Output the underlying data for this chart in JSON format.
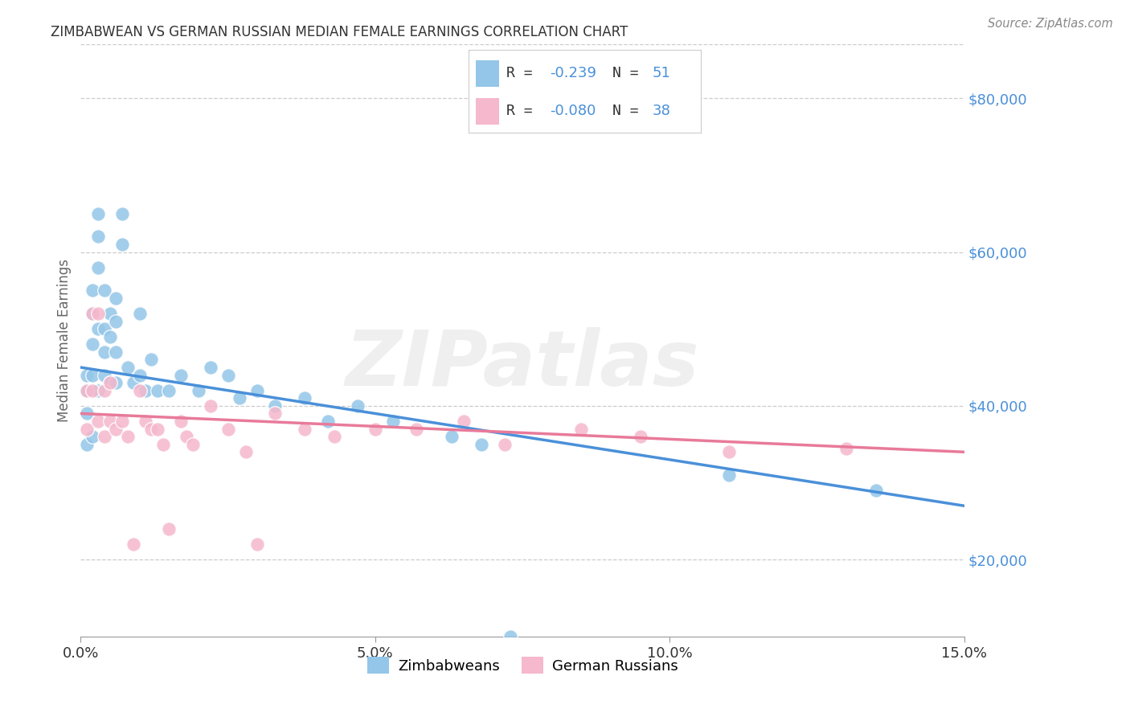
{
  "title": "ZIMBABWEAN VS GERMAN RUSSIAN MEDIAN FEMALE EARNINGS CORRELATION CHART",
  "source": "Source: ZipAtlas.com",
  "ylabel": "Median Female Earnings",
  "xlim": [
    0.0,
    0.15
  ],
  "ylim": [
    10000,
    87000
  ],
  "xticks": [
    0.0,
    0.05,
    0.1,
    0.15
  ],
  "xtick_labels": [
    "0.0%",
    "5.0%",
    "10.0%",
    "15.0%"
  ],
  "ytick_vals": [
    20000,
    40000,
    60000,
    80000
  ],
  "ytick_labels": [
    "$20,000",
    "$40,000",
    "$60,000",
    "$80,000"
  ],
  "zim_color": "#93c6e8",
  "gr_color": "#f5b8cc",
  "zim_line_color": "#4a90d9",
  "gr_line_color": "#e87a9a",
  "bg_color": "#ffffff",
  "grid_color": "#cccccc",
  "title_color": "#333333",
  "ylabel_color": "#666666",
  "right_tick_color": "#4a90d9",
  "legend_text_color": "#4a90d9",
  "R_zim": "-0.239",
  "N_zim": "51",
  "R_gr": "-0.080",
  "N_gr": "38",
  "watermark_text": "ZIPatlas",
  "zim_trendline_x": [
    0.0,
    0.15
  ],
  "zim_trendline_y": [
    45000,
    27000
  ],
  "gr_trendline_x": [
    0.0,
    0.15
  ],
  "gr_trendline_y": [
    39000,
    34000
  ],
  "zim_x": [
    0.001,
    0.001,
    0.001,
    0.001,
    0.002,
    0.002,
    0.002,
    0.002,
    0.002,
    0.003,
    0.003,
    0.003,
    0.003,
    0.003,
    0.004,
    0.004,
    0.004,
    0.004,
    0.005,
    0.005,
    0.005,
    0.006,
    0.006,
    0.006,
    0.006,
    0.007,
    0.007,
    0.008,
    0.009,
    0.01,
    0.01,
    0.011,
    0.012,
    0.013,
    0.015,
    0.017,
    0.02,
    0.022,
    0.025,
    0.027,
    0.03,
    0.033,
    0.038,
    0.042,
    0.047,
    0.053,
    0.063,
    0.068,
    0.073,
    0.11,
    0.135
  ],
  "zim_y": [
    44000,
    42000,
    39000,
    35000,
    55000,
    52000,
    48000,
    44000,
    36000,
    65000,
    62000,
    58000,
    50000,
    42000,
    55000,
    50000,
    47000,
    44000,
    52000,
    49000,
    43000,
    54000,
    51000,
    47000,
    43000,
    65000,
    61000,
    45000,
    43000,
    52000,
    44000,
    42000,
    46000,
    42000,
    42000,
    44000,
    42000,
    45000,
    44000,
    41000,
    42000,
    40000,
    41000,
    38000,
    40000,
    38000,
    36000,
    35000,
    10000,
    31000,
    29000
  ],
  "gr_x": [
    0.001,
    0.001,
    0.002,
    0.002,
    0.003,
    0.003,
    0.004,
    0.004,
    0.005,
    0.005,
    0.006,
    0.007,
    0.008,
    0.009,
    0.01,
    0.011,
    0.012,
    0.013,
    0.014,
    0.015,
    0.017,
    0.018,
    0.019,
    0.022,
    0.025,
    0.028,
    0.03,
    0.033,
    0.038,
    0.043,
    0.05,
    0.057,
    0.065,
    0.072,
    0.085,
    0.095,
    0.11,
    0.13
  ],
  "gr_y": [
    42000,
    37000,
    52000,
    42000,
    52000,
    38000,
    42000,
    36000,
    43000,
    38000,
    37000,
    38000,
    36000,
    22000,
    42000,
    38000,
    37000,
    37000,
    35000,
    24000,
    38000,
    36000,
    35000,
    40000,
    37000,
    34000,
    22000,
    39000,
    37000,
    36000,
    37000,
    37000,
    38000,
    35000,
    37000,
    36000,
    34000,
    34500
  ]
}
